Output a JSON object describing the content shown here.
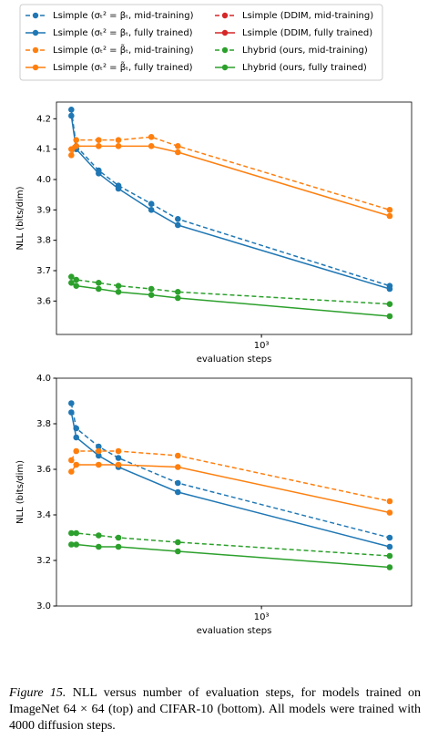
{
  "chart_data": [
    {
      "type": "line",
      "x": [
        128,
        135,
        172,
        213,
        304,
        405,
        4000
      ],
      "xlabel": "evaluation steps",
      "ylabel": "NLL (bits/dim)",
      "xscale": "log",
      "xlim": [
        109,
        5070
      ],
      "xticks": [
        {
          "value": 1000,
          "label": "10³"
        }
      ],
      "ylim": [
        3.49,
        4.255
      ],
      "yticks": [
        3.6,
        3.7,
        3.8,
        3.9,
        {
          "value": 4.0,
          "label": "4.0"
        },
        4.1,
        4.2
      ],
      "series": [
        {
          "name": "Lsimple (σₜ² = βₜ, mid-training)",
          "color": "#1f77b4",
          "linestyle": "dashed",
          "values": [
            4.23,
            4.11,
            4.03,
            3.98,
            3.92,
            3.87,
            3.65
          ]
        },
        {
          "name": "Lsimple (σₜ² = βₜ, fully trained)",
          "color": "#1f77b4",
          "linestyle": "solid",
          "values": [
            4.21,
            4.1,
            4.02,
            3.97,
            3.9,
            3.85,
            3.64
          ]
        },
        {
          "name": "Lsimple (σₜ² = β̃ₜ, mid-training)",
          "color": "#ff7f0e",
          "linestyle": "dashed",
          "values": [
            4.1,
            4.13,
            4.13,
            4.13,
            4.14,
            4.11,
            3.9
          ]
        },
        {
          "name": "Lsimple (σₜ² = β̃ₜ, fully trained)",
          "color": "#ff7f0e",
          "linestyle": "solid",
          "values": [
            4.08,
            4.11,
            4.11,
            4.11,
            4.11,
            4.09,
            3.88
          ]
        },
        {
          "name": "Lsimple (DDIM, mid-training)",
          "color": "#d62728",
          "linestyle": "dashed",
          "values": [
            null,
            null,
            null,
            null,
            null,
            null,
            null
          ]
        },
        {
          "name": "Lsimple (DDIM, fully trained)",
          "color": "#d62728",
          "linestyle": "solid",
          "values": [
            null,
            null,
            null,
            null,
            null,
            null,
            null
          ]
        },
        {
          "name": "Lhybrid (ours, mid-training)",
          "color": "#2ca02c",
          "linestyle": "dashed",
          "values": [
            3.68,
            3.67,
            3.66,
            3.65,
            3.64,
            3.63,
            3.59
          ]
        },
        {
          "name": "Lhybrid (ours, fully trained)",
          "color": "#2ca02c",
          "linestyle": "solid",
          "values": [
            3.66,
            3.65,
            3.64,
            3.63,
            3.62,
            3.61,
            3.55
          ]
        }
      ]
    },
    {
      "type": "line",
      "x": [
        128,
        135,
        172,
        213,
        405,
        4000
      ],
      "xlabel": "evaluation steps",
      "ylabel": "NLL (bits/dim)",
      "xscale": "log",
      "xlim": [
        109,
        5070
      ],
      "xticks": [
        {
          "value": 1000,
          "label": "10³"
        }
      ],
      "ylim": [
        3.0,
        4.0
      ],
      "yticks": [
        {
          "value": 3.0,
          "label": "3.0"
        },
        3.2,
        3.4,
        3.6,
        3.8,
        {
          "value": 4.0,
          "label": "4.0"
        }
      ],
      "series": [
        {
          "color": "#1f77b4",
          "linestyle": "dashed",
          "values": [
            3.89,
            3.78,
            3.7,
            3.65,
            3.54,
            3.3
          ]
        },
        {
          "color": "#1f77b4",
          "linestyle": "solid",
          "values": [
            3.85,
            3.74,
            3.66,
            3.61,
            3.5,
            3.26
          ]
        },
        {
          "color": "#ff7f0e",
          "linestyle": "dashed",
          "values": [
            3.64,
            3.68,
            3.68,
            3.68,
            3.66,
            3.46
          ]
        },
        {
          "color": "#ff7f0e",
          "linestyle": "solid",
          "values": [
            3.59,
            3.62,
            3.62,
            3.62,
            3.61,
            3.41
          ]
        },
        {
          "color": "#d62728",
          "linestyle": "dashed",
          "values": [
            null,
            null,
            null,
            null,
            null,
            null
          ]
        },
        {
          "color": "#d62728",
          "linestyle": "solid",
          "values": [
            null,
            null,
            null,
            null,
            null,
            null
          ]
        },
        {
          "color": "#2ca02c",
          "linestyle": "dashed",
          "values": [
            3.32,
            3.32,
            3.31,
            3.3,
            3.28,
            3.22
          ]
        },
        {
          "color": "#2ca02c",
          "linestyle": "solid",
          "values": [
            3.27,
            3.27,
            3.26,
            3.26,
            3.24,
            3.17
          ]
        }
      ]
    }
  ],
  "caption": {
    "label": "Figure 15.",
    "text": "NLL versus number of evaluation steps, for models trained on ImageNet 64 × 64 (top) and CIFAR-10 (bottom). All models were trained with 4000 diffusion steps."
  }
}
